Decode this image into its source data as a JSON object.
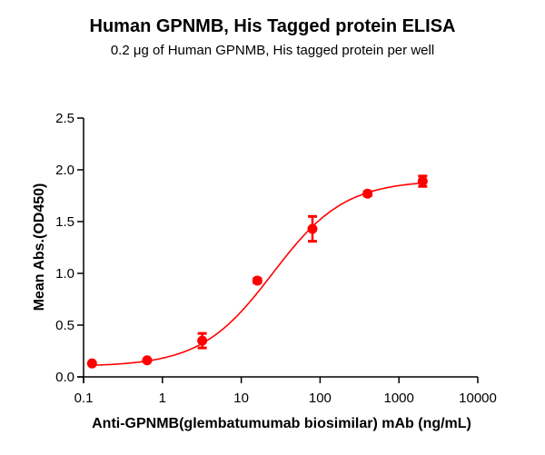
{
  "chart_data": {
    "type": "scatter",
    "title": "Human GPNMB, His Tagged protein ELISA",
    "subtitle": "0.2 μg of Human GPNMB, His tagged protein per well",
    "xlabel": "Anti-GPNMB(glembatumumab biosimilar) mAb (ng/mL)",
    "ylabel": "Mean Abs.(OD450)",
    "xscale": "log",
    "xlim": [
      0.1,
      10000
    ],
    "ylim": [
      0,
      2.5
    ],
    "xticks": [
      "0.1",
      "1",
      "10",
      "100",
      "1000",
      "10000"
    ],
    "yticks": [
      "0.0",
      "0.5",
      "1.0",
      "1.5",
      "2.0",
      "2.5"
    ],
    "grid": false,
    "legend": null,
    "color": "#ff0000",
    "fit": "4-parameter logistic curve",
    "series": [
      {
        "name": "Mean Abs.(OD450)",
        "x": [
          0.128,
          0.64,
          3.2,
          16,
          80,
          400,
          2000
        ],
        "y": [
          0.13,
          0.16,
          0.35,
          0.93,
          1.43,
          1.77,
          1.89
        ],
        "error": [
          0.01,
          0.01,
          0.07,
          0.02,
          0.12,
          0.02,
          0.05
        ]
      }
    ]
  }
}
